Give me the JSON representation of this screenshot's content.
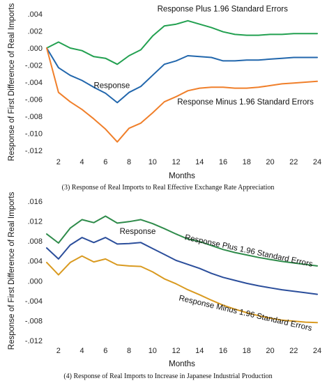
{
  "chart_data": [
    {
      "type": "line",
      "caption": "(3) Response of Real Imports to Real Effective Exchange Rate Appreciation",
      "xlabel": "Months",
      "ylabel": "Response of First Difference of Real Imports",
      "xlim": [
        1,
        24
      ],
      "ylim": [
        -0.012,
        0.004
      ],
      "xticks": [
        2,
        4,
        6,
        8,
        10,
        12,
        14,
        16,
        18,
        20,
        22,
        24
      ],
      "yticks": [
        0.004,
        0.002,
        0.0,
        -0.002,
        -0.004,
        -0.006,
        -0.008,
        -0.01,
        -0.012
      ],
      "ytick_labels": [
        ".004",
        ".002",
        ".000",
        "-.002",
        "-.004",
        "-.006",
        "-.008",
        "-.010",
        "-.012"
      ],
      "grid": false,
      "x": [
        1,
        2,
        3,
        4,
        5,
        6,
        7,
        8,
        9,
        10,
        11,
        12,
        13,
        14,
        15,
        16,
        17,
        18,
        19,
        20,
        21,
        22,
        23,
        24
      ],
      "series": [
        {
          "name": "Response Plus 1.96 Standard Errors",
          "color": "#22a050",
          "values": [
            0.0,
            0.0007,
            0.0,
            -0.0003,
            -0.001,
            -0.0012,
            -0.0019,
            -0.0009,
            -0.0002,
            0.0014,
            0.0026,
            0.0028,
            0.0032,
            0.0028,
            0.0024,
            0.0019,
            0.0016,
            0.0015,
            0.0015,
            0.0016,
            0.0016,
            0.0017,
            0.0017,
            0.0017
          ]
        },
        {
          "name": "Response",
          "color": "#2166ac",
          "values": [
            0.0,
            -0.0023,
            -0.0032,
            -0.0038,
            -0.0046,
            -0.0053,
            -0.0064,
            -0.0052,
            -0.0045,
            -0.0032,
            -0.0019,
            -0.0015,
            -0.0009,
            -0.001,
            -0.0011,
            -0.0015,
            -0.0015,
            -0.0014,
            -0.0014,
            -0.0013,
            -0.0012,
            -0.0011,
            -0.0011,
            -0.0011
          ]
        },
        {
          "name": "Response Minus 1.96 Standard Errors",
          "color": "#f07f2a",
          "values": [
            0.0,
            -0.0052,
            -0.0063,
            -0.0072,
            -0.0083,
            -0.0095,
            -0.011,
            -0.0094,
            -0.0088,
            -0.0076,
            -0.0063,
            -0.0057,
            -0.005,
            -0.0047,
            -0.0046,
            -0.0046,
            -0.0047,
            -0.0047,
            -0.0046,
            -0.0044,
            -0.0042,
            -0.0041,
            -0.004,
            -0.0039
          ]
        }
      ],
      "annotations": [
        {
          "text": "Response Plus 1.96 Standard Errors",
          "series": 0,
          "at_x": 10.4,
          "at_y": 0.0043
        },
        {
          "text": "Response",
          "series": 1,
          "at_x": 5.0,
          "at_y": -0.0047
        },
        {
          "text": "Response Minus 1.96 Standard Errors",
          "series": 2,
          "at_x": 12.1,
          "at_y": -0.0066
        }
      ]
    },
    {
      "type": "line",
      "caption": "(4) Response of Real Imports to Increase in Japanese Industrial Production",
      "xlabel": "Months",
      "ylabel": "Response of First Difference of Real Imports",
      "xlim": [
        1,
        24
      ],
      "ylim": [
        -0.012,
        0.016
      ],
      "xticks": [
        2,
        4,
        6,
        8,
        10,
        12,
        14,
        16,
        18,
        20,
        22,
        24
      ],
      "yticks": [
        0.016,
        0.012,
        0.008,
        0.004,
        0.0,
        -0.004,
        -0.008,
        -0.012
      ],
      "ytick_labels": [
        ".016",
        ".012",
        ".008",
        ".004",
        ".000",
        "-.004",
        "-.008",
        "-.012"
      ],
      "grid": false,
      "x": [
        1,
        2,
        3,
        4,
        5,
        6,
        7,
        8,
        9,
        10,
        11,
        12,
        13,
        14,
        15,
        16,
        17,
        18,
        19,
        20,
        21,
        22,
        23,
        24
      ],
      "series": [
        {
          "name": "Response Plus 1.96 Standard Errors",
          "color": "#2e8b4a",
          "values": [
            0.0094,
            0.0076,
            0.0106,
            0.0123,
            0.0117,
            0.013,
            0.0116,
            0.0119,
            0.0123,
            0.0115,
            0.0105,
            0.0094,
            0.0084,
            0.0079,
            0.0071,
            0.0063,
            0.0057,
            0.0052,
            0.0047,
            0.0043,
            0.0039,
            0.0036,
            0.0033,
            0.003
          ]
        },
        {
          "name": "Response",
          "color": "#2b4e9b",
          "values": [
            0.0066,
            0.0044,
            0.0072,
            0.0087,
            0.0077,
            0.0087,
            0.0074,
            0.0075,
            0.0077,
            0.0065,
            0.0053,
            0.0041,
            0.0033,
            0.0025,
            0.0015,
            0.0007,
            0.0001,
            -0.0005,
            -0.001,
            -0.0014,
            -0.0018,
            -0.0021,
            -0.0024,
            -0.0027
          ]
        },
        {
          "name": "Response Minus 1.96 Standard Errors",
          "color": "#d99a20",
          "values": [
            0.0037,
            0.0012,
            0.0037,
            0.005,
            0.0038,
            0.0044,
            0.0032,
            0.003,
            0.0029,
            0.0018,
            0.0004,
            -0.0006,
            -0.0018,
            -0.0028,
            -0.0039,
            -0.0049,
            -0.0057,
            -0.0064,
            -0.007,
            -0.0075,
            -0.0079,
            -0.0081,
            -0.0083,
            -0.0084
          ]
        }
      ],
      "annotations": [
        {
          "text": "Response Plus 1.96 Standard Errors",
          "series": 0,
          "at_x": 12.7,
          "at_y": 0.0083,
          "rotate": 12
        },
        {
          "text": "Response",
          "series": 1,
          "at_x": 7.2,
          "at_y": 0.0094
        },
        {
          "text": "Response Minus 1.96 Standard Errors",
          "series": 2,
          "at_x": 12.2,
          "at_y": -0.0039,
          "rotate": 13
        }
      ]
    }
  ]
}
